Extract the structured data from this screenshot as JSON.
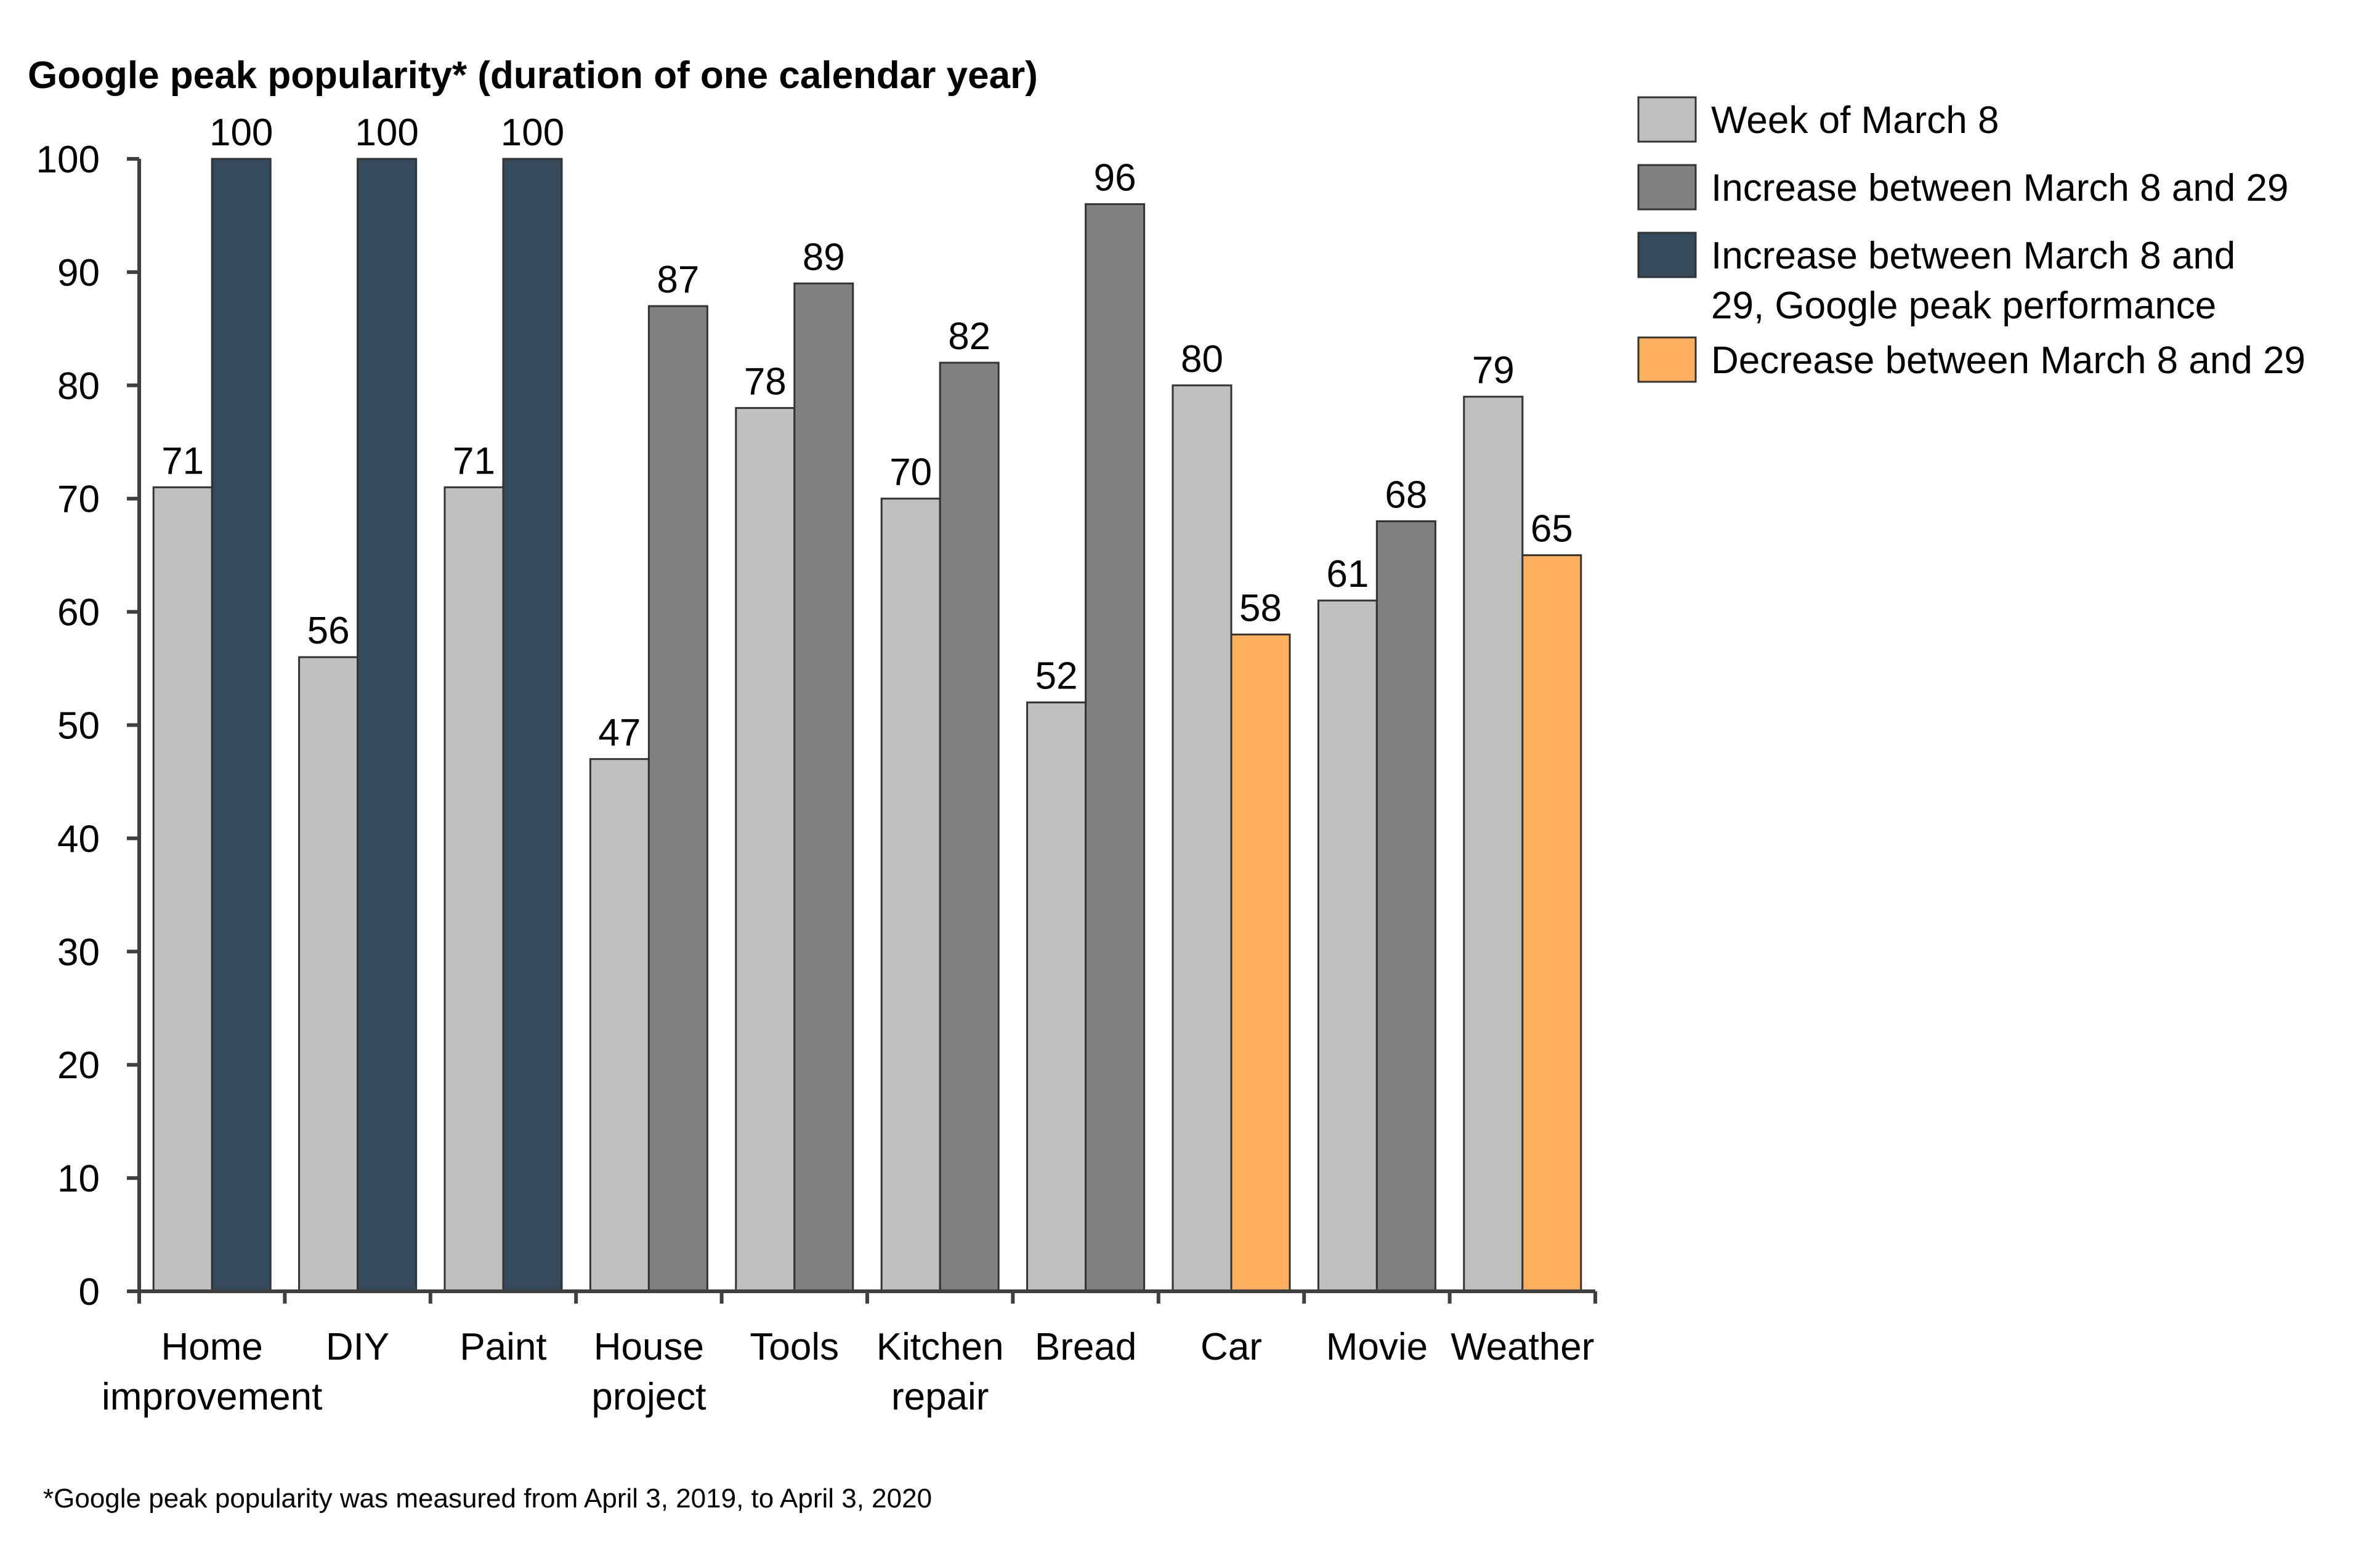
{
  "chart_data": {
    "type": "bar",
    "title": "Google peak popularity* (duration of one calendar year)",
    "footnote": "*Google peak popularity was measured from April 3, 2019, to April 3, 2020",
    "ylim": [
      0,
      100
    ],
    "yticks": [
      0,
      10,
      20,
      30,
      40,
      50,
      60,
      70,
      80,
      90,
      100
    ],
    "ytick_labels": [
      "0",
      "10",
      "20",
      "30",
      "40",
      "50",
      "60",
      "70",
      "80",
      "90",
      "100"
    ],
    "grid": false,
    "legend_position": "top-right",
    "categories": [
      [
        "Home",
        "improvement"
      ],
      [
        "DIY"
      ],
      [
        "Paint"
      ],
      [
        "House",
        "project"
      ],
      [
        "Tools"
      ],
      [
        "Kitchen",
        "repair"
      ],
      [
        "Bread"
      ],
      [
        "Car"
      ],
      [
        "Movie"
      ],
      [
        "Weather"
      ]
    ],
    "week_values": [
      71,
      56,
      71,
      47,
      78,
      70,
      52,
      80,
      61,
      79
    ],
    "change_values": [
      100,
      100,
      100,
      87,
      89,
      82,
      96,
      58,
      68,
      65
    ],
    "change_kinds": [
      "peak",
      "peak",
      "peak",
      "increase",
      "increase",
      "increase",
      "increase",
      "decrease",
      "increase",
      "decrease"
    ],
    "legend": [
      {
        "key": "week",
        "lines": [
          "Week of March 8"
        ],
        "color": "#c0c0c0"
      },
      {
        "key": "increase",
        "lines": [
          "Increase between March 8 and 29"
        ],
        "color": "#808080"
      },
      {
        "key": "peak",
        "lines": [
          "Increase between March 8 and",
          "29, Google peak performance"
        ],
        "color": "#344a5b"
      },
      {
        "key": "decrease",
        "lines": [
          "Decrease between March 8 and 29"
        ],
        "color": "#ffb05f"
      }
    ],
    "colors": {
      "week": "#c0c0c0",
      "increase": "#808080",
      "peak": "#344a5b",
      "decrease": "#ffb05f",
      "outline": "#333333",
      "axis": "#404040",
      "text": "#000000"
    }
  }
}
